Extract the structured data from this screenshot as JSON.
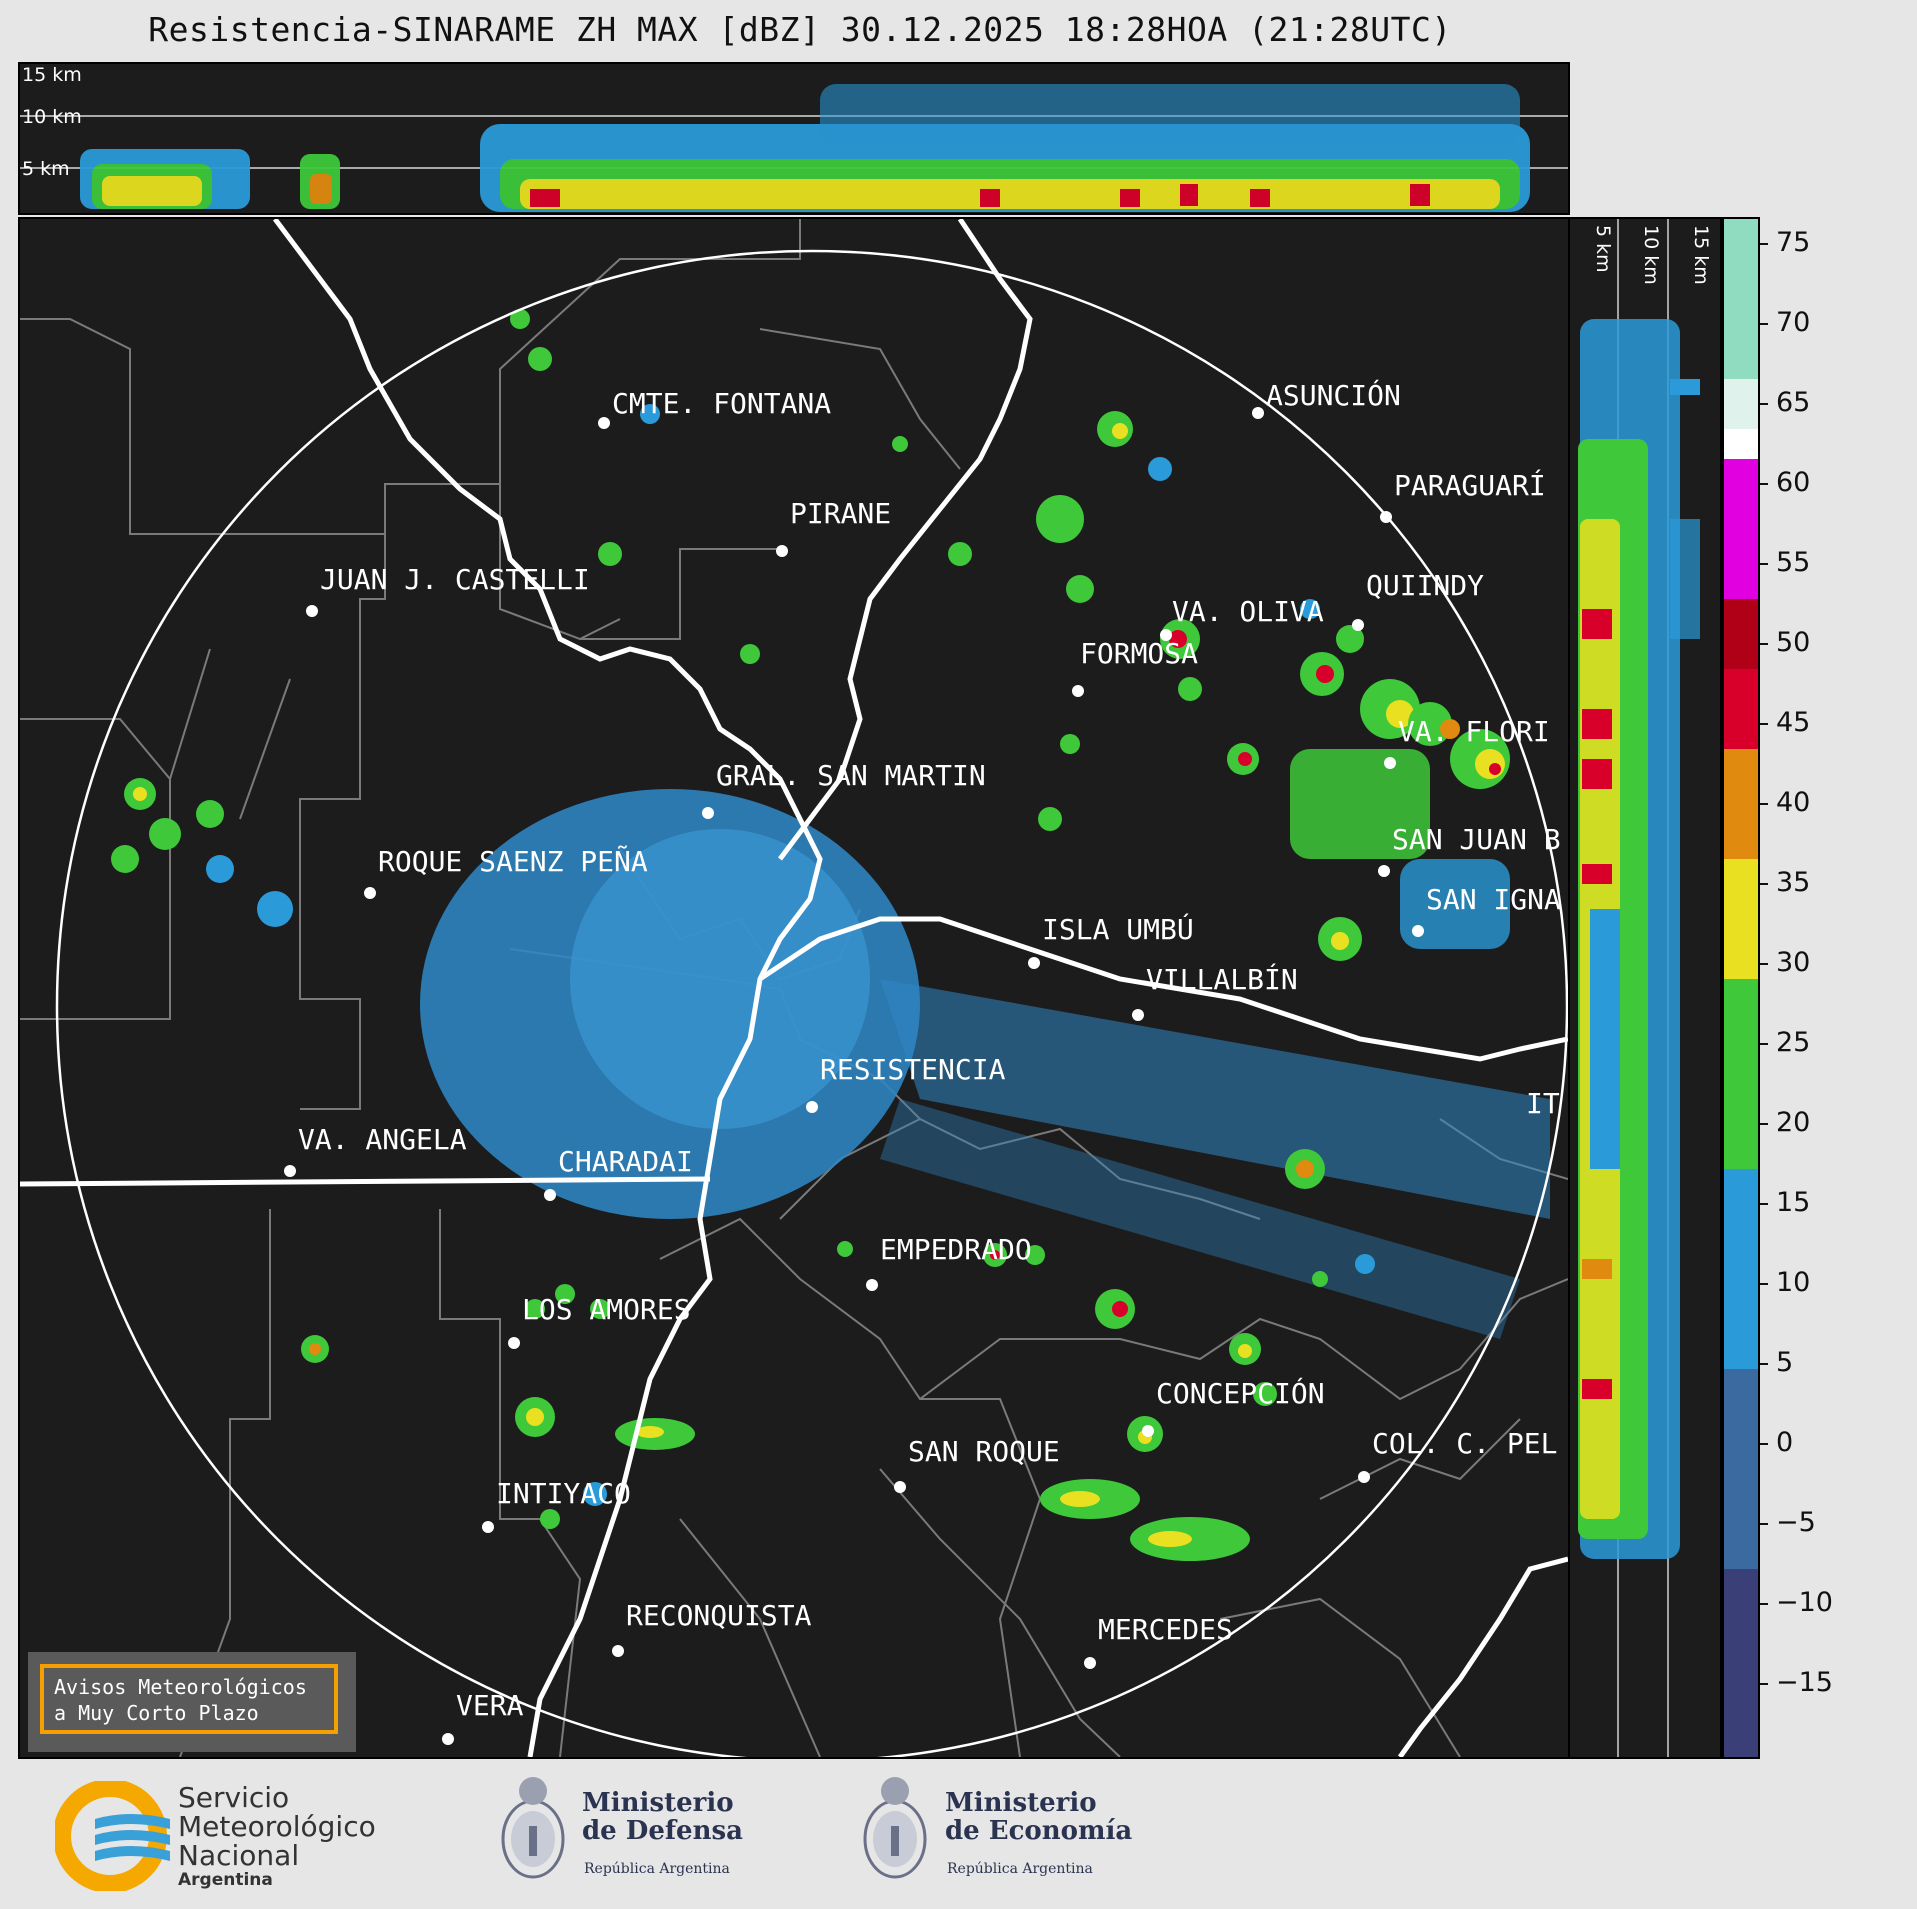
{
  "title": "Resistencia-SINARAME ZH MAX [dBZ] 30.12.2025 18:28HOA (21:28UTC)",
  "top_altitudes": [
    "15 km",
    "10 km",
    "5 km"
  ],
  "side_altitudes": [
    "5 km",
    "10 km",
    "15 km"
  ],
  "colorbar": {
    "ticks": [
      "75",
      "70",
      "65",
      "60",
      "55",
      "50",
      "45",
      "40",
      "35",
      "30",
      "25",
      "20",
      "15",
      "10",
      "5",
      "0",
      "−5",
      "−10",
      "−15"
    ],
    "colors": {
      "extreme": "#8fdcc0",
      "white": "#ffffff",
      "magenta": "#e000e0",
      "red": "#d8002a",
      "orange": "#e08a10",
      "yellow": "#e8e020",
      "green": "#3ec83a",
      "blue": "#2a9ad8",
      "navy": "#3a3f78"
    }
  },
  "cities": [
    {
      "name": "CMTE. FONTANA"
    },
    {
      "name": "ASUNCIÓN"
    },
    {
      "name": "PARAGUARÍ"
    },
    {
      "name": "PIRANE"
    },
    {
      "name": "JUAN J. CASTELLI"
    },
    {
      "name": "VA. OLIVA"
    },
    {
      "name": "QUIINDY"
    },
    {
      "name": "FORMOSA"
    },
    {
      "name": "VA. FLORI"
    },
    {
      "name": "GRAL. SAN MARTIN"
    },
    {
      "name": "SAN JUAN B"
    },
    {
      "name": "ROQUE SAENZ PEÑA"
    },
    {
      "name": "SAN IGNA"
    },
    {
      "name": "ISLA UMBÚ"
    },
    {
      "name": "VILLALBÍN"
    },
    {
      "name": "RESISTENCIA"
    },
    {
      "name": "IT"
    },
    {
      "name": "VA. ANGELA"
    },
    {
      "name": "CHARADAI"
    },
    {
      "name": "EMPEDRADO"
    },
    {
      "name": "LOS AMORES"
    },
    {
      "name": "CONCEPCIÓN"
    },
    {
      "name": "SAN ROQUE"
    },
    {
      "name": "COL. C. PEL"
    },
    {
      "name": "INTIYACO"
    },
    {
      "name": "RECONQUISTA"
    },
    {
      "name": "MERCEDES"
    },
    {
      "name": "VERA"
    }
  ],
  "avisos": {
    "line1": "Avisos Meteorológicos",
    "line2": "a Muy Corto Plazo"
  },
  "footer": {
    "smn": {
      "line1": "Servicio",
      "line2": "Meteorológico",
      "line3": "Nacional",
      "line4": "Argentina"
    },
    "defensa": {
      "line1": "Ministerio",
      "line2": "de Defensa",
      "sub": "República Argentina"
    },
    "economia": {
      "line1": "Ministerio",
      "line2": "de Economía",
      "sub": "República Argentina"
    }
  }
}
